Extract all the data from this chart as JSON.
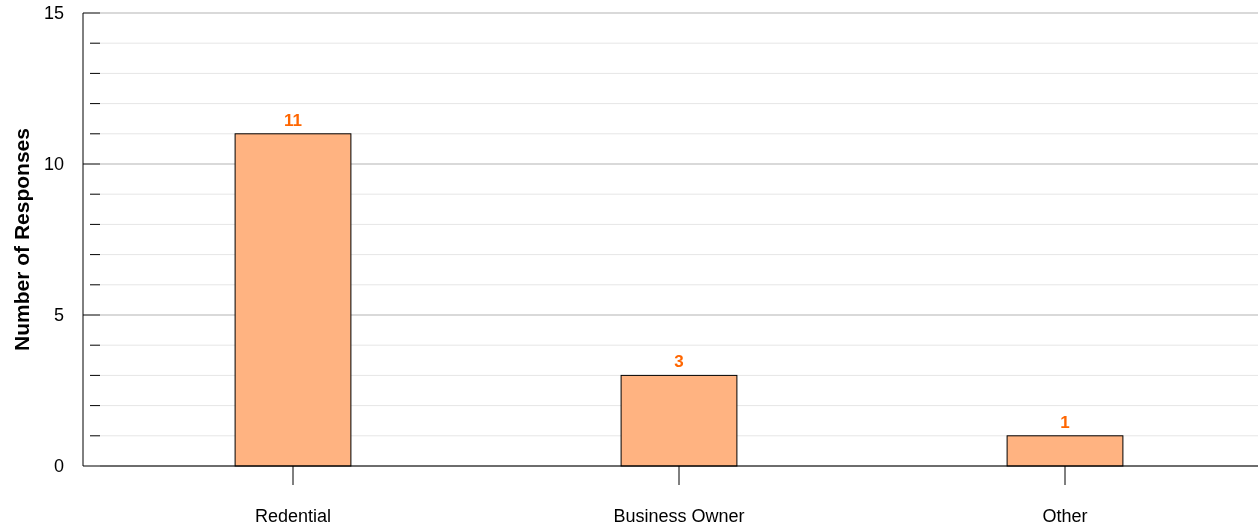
{
  "chart_data": {
    "type": "bar",
    "ylabel": "Number of Responses",
    "categories": [
      "Redential",
      "Business Owner",
      "Other"
    ],
    "values": [
      11,
      3,
      1
    ],
    "color": "#ffb381",
    "data_labels": true,
    "ylim": [
      0,
      15
    ],
    "yticks": [
      0,
      {
        "value": 1,
        "label": null
      },
      {
        "value": 2,
        "label": null
      },
      {
        "value": 3,
        "label": null
      },
      {
        "value": 4,
        "label": null
      },
      5,
      {
        "value": 6,
        "label": null
      },
      {
        "value": 7,
        "label": null
      },
      {
        "value": 8,
        "label": null
      },
      {
        "value": 9,
        "label": null
      },
      10,
      {
        "value": 11,
        "label": null
      },
      {
        "value": 12,
        "label": null
      },
      {
        "value": 13,
        "label": null
      },
      {
        "value": 14,
        "label": null
      },
      15
    ],
    "grid": true
  }
}
